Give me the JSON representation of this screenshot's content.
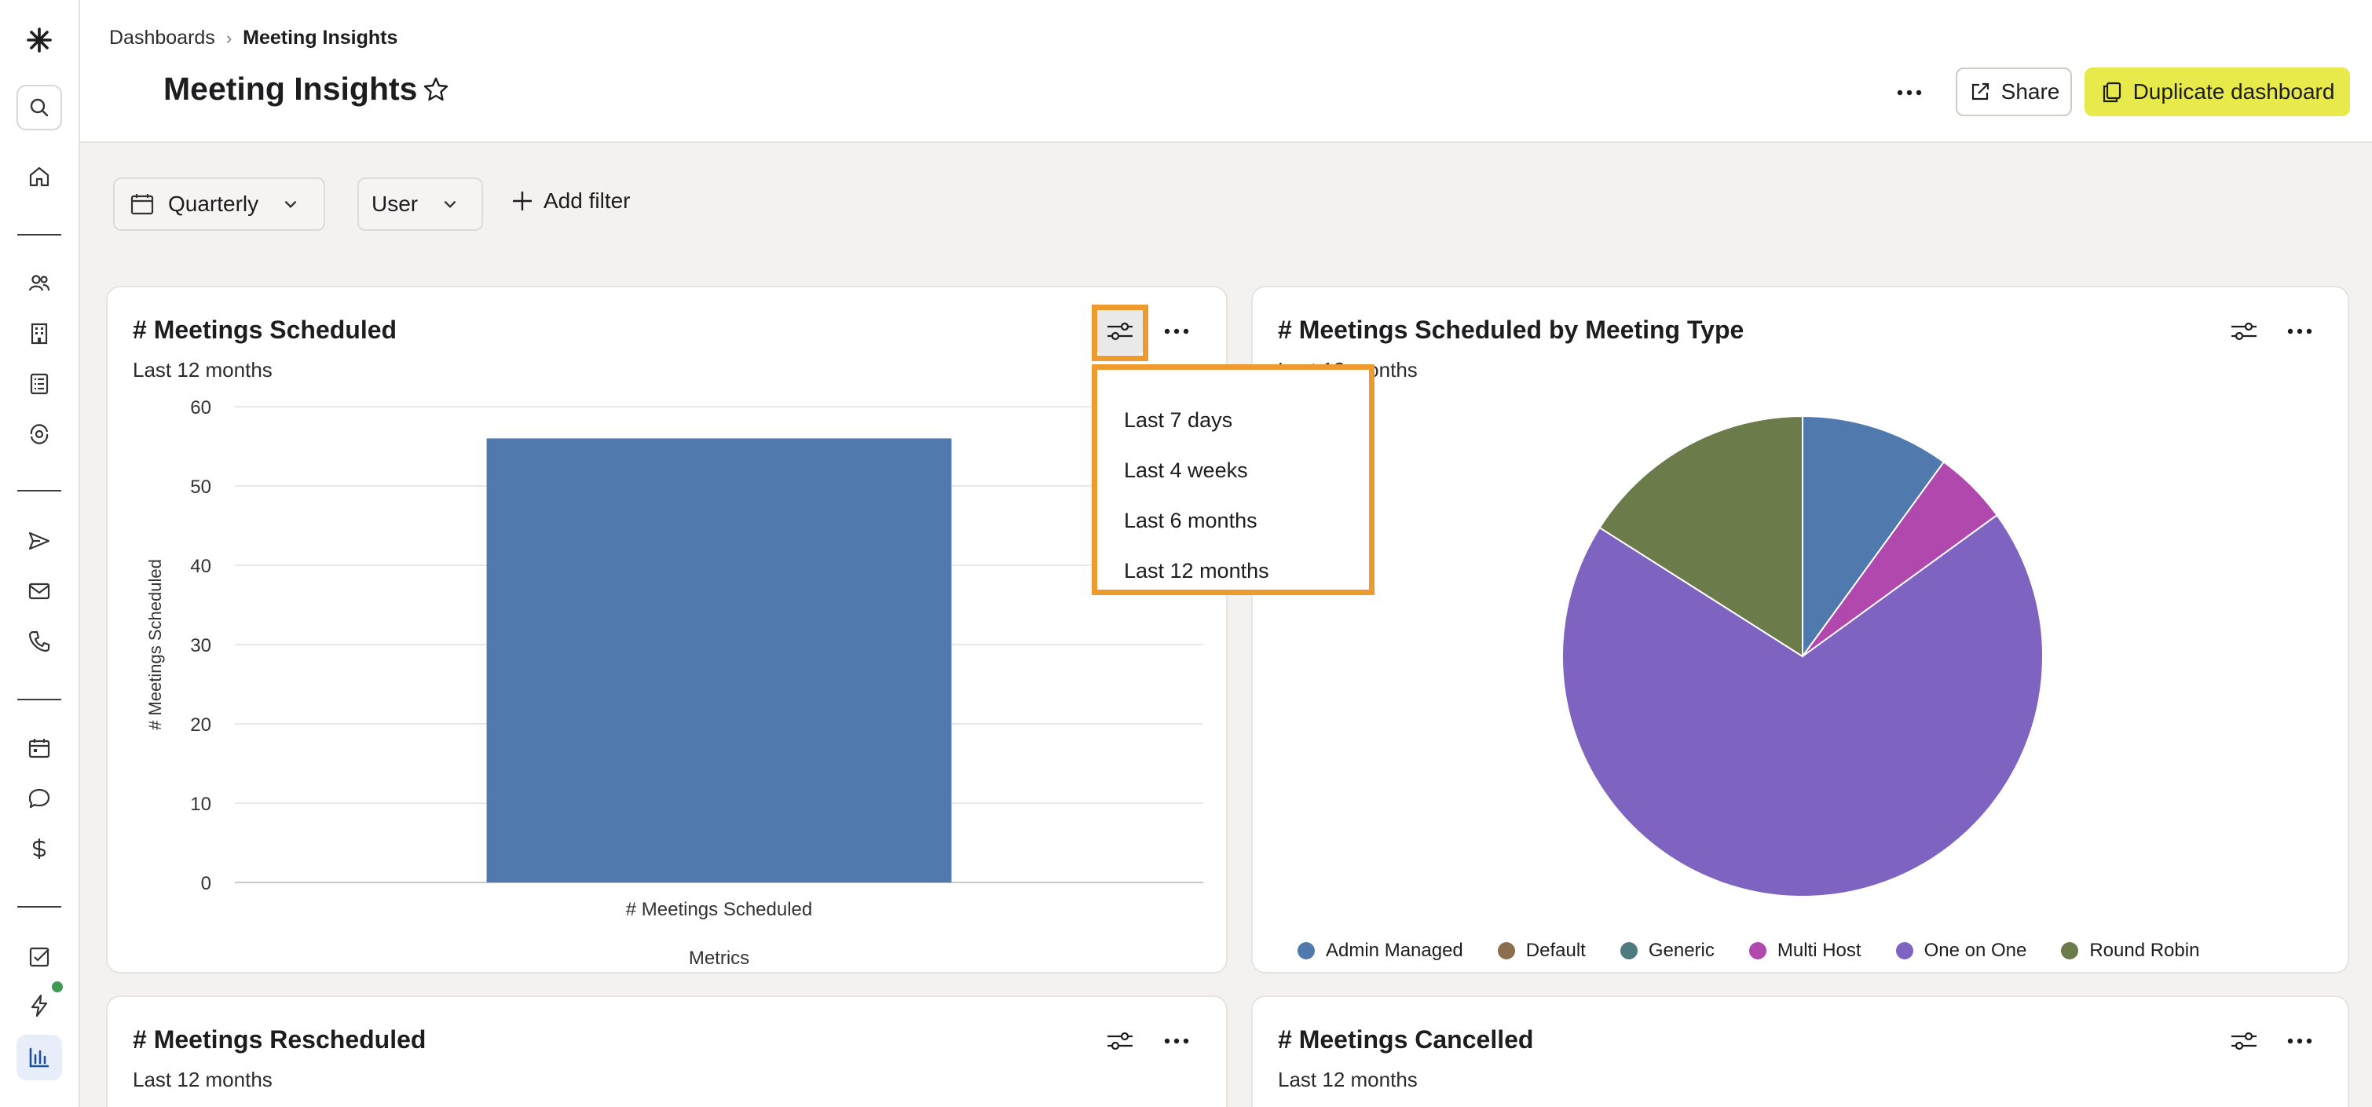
{
  "breadcrumb": {
    "root": "Dashboards",
    "separator": "›",
    "current": "Meeting Insights"
  },
  "page": {
    "title": "Meeting Insights"
  },
  "header": {
    "share_label": "Share",
    "duplicate_label": "Duplicate dashboard"
  },
  "filters": {
    "period": "Quarterly",
    "user": "User",
    "add_label": "Add filter"
  },
  "cards": {
    "meetings_scheduled": {
      "title": "# Meetings Scheduled",
      "subtitle": "Last 12 months"
    },
    "by_type": {
      "title": "# Meetings Scheduled by Meeting Type",
      "subtitle": "Last 12 months"
    },
    "rescheduled": {
      "title": "# Meetings Rescheduled",
      "subtitle": "Last 12 months"
    },
    "cancelled": {
      "title": "# Meetings Cancelled",
      "subtitle": "Last 12 months"
    }
  },
  "dropdown": {
    "options": [
      "Last 7 days",
      "Last 4 weeks",
      "Last 6 months",
      "Last 12 months"
    ]
  },
  "colors": {
    "accent_yellow": "#e7ea4a",
    "highlight_orange": "#ee9a2f",
    "bar_blue": "#5079ad"
  },
  "chart_data": [
    {
      "type": "bar",
      "categories": [
        "# Meetings Scheduled"
      ],
      "values": [
        56
      ],
      "xlabel": "Metrics",
      "ylabel": "# Meetings Scheduled",
      "ylim": [
        0,
        60
      ],
      "yticks": [
        0,
        10,
        20,
        30,
        40,
        50,
        60
      ],
      "grid": true,
      "color": "#5079ad"
    },
    {
      "type": "pie",
      "labels": [
        "Admin Managed",
        "Default",
        "Generic",
        "Multi Host",
        "One on One",
        "Round Robin"
      ],
      "values": [
        10,
        0,
        0,
        5,
        69,
        16
      ],
      "colors": [
        "#5079ad",
        "#8b6e4e",
        "#4e7b80",
        "#b048ae",
        "#7f63c1",
        "#6b7b4a"
      ],
      "legend": "bottom"
    }
  ]
}
